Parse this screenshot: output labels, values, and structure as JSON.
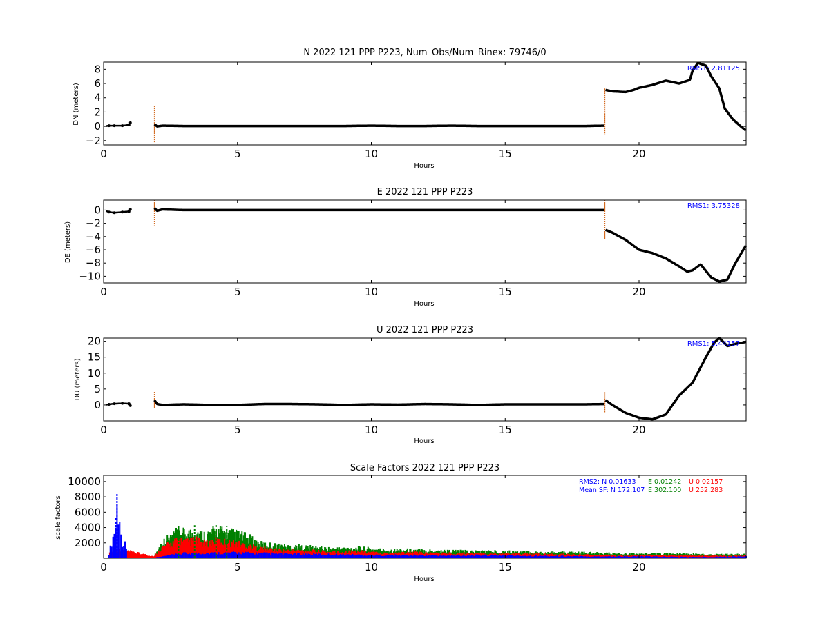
{
  "colors": {
    "trace": "#000000",
    "error_bars": "#d2691e",
    "rms_text": "#0000ff",
    "sf_n": "#0000ff",
    "sf_e": "#008000",
    "sf_u": "#ff0000"
  },
  "chart_data": [
    {
      "type": "scatter",
      "title": "N 2022 121 PPP  P223, Num_Obs/Num_Rinex: 79746/0",
      "xlabel": "Hours",
      "ylabel": "DN (meters)",
      "xlim": [
        0,
        24
      ],
      "ylim": [
        -2.6,
        9
      ],
      "xticks": [
        0,
        5,
        10,
        15,
        20
      ],
      "yticks": [
        -2,
        0,
        2,
        4,
        6,
        8
      ],
      "annotation": "RMS1:  2.81125",
      "grid": false,
      "series": [
        {
          "x": [
            0.0,
            0.2,
            0.4,
            0.7,
            0.95,
            1.0,
            1.9,
            2.0,
            2.2,
            3,
            4,
            5,
            6,
            7,
            8,
            9,
            10,
            11,
            12,
            13,
            14,
            15,
            16,
            17,
            18,
            18.7,
            18.75,
            19.0,
            19.5,
            19.8,
            20.0,
            20.5,
            21.0,
            21.5,
            21.9,
            22.0,
            22.2,
            22.5,
            22.7,
            23.0,
            23.2,
            23.5,
            23.8,
            24.0
          ],
          "y": [
            0.0,
            0.1,
            0.1,
            0.1,
            0.2,
            0.5,
            0.3,
            0.0,
            0.1,
            0.05,
            0.05,
            0.05,
            0.05,
            0.05,
            0.05,
            0.05,
            0.1,
            0.05,
            0.05,
            0.1,
            0.05,
            0.05,
            0.05,
            0.05,
            0.05,
            0.1,
            5.1,
            4.9,
            4.8,
            5.1,
            5.4,
            5.8,
            6.4,
            6.0,
            6.5,
            7.8,
            8.9,
            8.5,
            7.0,
            5.3,
            2.5,
            1.0,
            0.0,
            -0.6
          ]
        }
      ]
    },
    {
      "type": "scatter",
      "title": "E 2022 121 PPP  P223",
      "xlabel": "Hours",
      "ylabel": "DE (meters)",
      "xlim": [
        0,
        24
      ],
      "ylim": [
        -11,
        1.5
      ],
      "xticks": [
        0,
        5,
        10,
        15,
        20
      ],
      "yticks": [
        0,
        -2,
        -4,
        -6,
        -8,
        -10
      ],
      "annotation": "RMS1:  3.75328",
      "grid": false,
      "series": [
        {
          "x": [
            0.0,
            0.2,
            0.4,
            0.7,
            0.95,
            1.0,
            1.9,
            2.0,
            2.2,
            3,
            4,
            5,
            6,
            7,
            8,
            9,
            10,
            11,
            12,
            13,
            14,
            15,
            16,
            17,
            18,
            18.7,
            18.75,
            19.0,
            19.5,
            20.0,
            20.5,
            21.0,
            21.5,
            21.8,
            22.0,
            22.3,
            22.7,
            23.0,
            23.3,
            23.6,
            24.0
          ],
          "y": [
            0.0,
            -0.3,
            -0.4,
            -0.3,
            -0.2,
            0.1,
            0.3,
            -0.1,
            0.1,
            0.0,
            0.0,
            0.0,
            0.0,
            0.0,
            0.0,
            0.0,
            0.0,
            0.0,
            0.0,
            0.0,
            0.0,
            0.0,
            0.0,
            0.0,
            0.0,
            0.0,
            -3.0,
            -3.4,
            -4.5,
            -6.0,
            -6.5,
            -7.3,
            -8.5,
            -9.3,
            -9.1,
            -8.2,
            -10.2,
            -10.8,
            -10.5,
            -8.0,
            -5.3
          ]
        }
      ]
    },
    {
      "type": "scatter",
      "title": "U 2022 121 PPP  P223",
      "xlabel": "Hours",
      "ylabel": "DU (meters)",
      "xlim": [
        0,
        24
      ],
      "ylim": [
        -5,
        21
      ],
      "xticks": [
        0,
        5,
        10,
        15,
        20
      ],
      "yticks": [
        0,
        5,
        10,
        15,
        20
      ],
      "annotation": "RMS1:  5.44157",
      "grid": false,
      "series": [
        {
          "x": [
            0.0,
            0.2,
            0.4,
            0.7,
            0.95,
            1.0,
            1.9,
            2.0,
            2.2,
            3,
            4,
            5,
            6,
            7,
            8,
            9,
            10,
            11,
            12,
            13,
            14,
            15,
            16,
            17,
            18,
            18.7,
            18.75,
            19.0,
            19.5,
            20.0,
            20.5,
            21.0,
            21.5,
            22.0,
            22.5,
            22.8,
            23.0,
            23.3,
            23.6,
            24.0
          ],
          "y": [
            0.0,
            0.2,
            0.4,
            0.5,
            0.4,
            -0.2,
            1.5,
            0.3,
            0.0,
            0.2,
            0.0,
            0.0,
            0.3,
            0.3,
            0.2,
            0.0,
            0.2,
            0.1,
            0.3,
            0.2,
            0.0,
            0.2,
            0.2,
            0.2,
            0.2,
            0.3,
            1.5,
            0.0,
            -2.5,
            -4.0,
            -4.5,
            -3.0,
            3.0,
            7.0,
            15.0,
            19.5,
            21.0,
            18.5,
            19.2,
            19.8
          ]
        }
      ]
    },
    {
      "type": "scatter",
      "title": "Scale Factors 2022 121 PPP  P223",
      "xlabel": "Hours",
      "ylabel": "scale factors",
      "xlim": [
        0,
        24
      ],
      "ylim": [
        0,
        10800
      ],
      "xticks": [
        0,
        5,
        10,
        15,
        20
      ],
      "yticks": [
        2000,
        4000,
        6000,
        8000,
        10000
      ],
      "legend_placement": "top-right",
      "stats": {
        "rms2_label": "RMS2: N  0.01633",
        "rms2_e": "E  0.01242",
        "rms2_u": "U  0.02157",
        "mean_label": "Mean SF: N 172.107",
        "mean_e": "E 302.100",
        "mean_u": "U 252.283"
      },
      "series": [
        {
          "color_key": "sf_e",
          "x": [
            1.9,
            2.2,
            2.5,
            2.8,
            3.1,
            3.4,
            3.8,
            4.2,
            4.6,
            5.0,
            5.4,
            5.8,
            6.5,
            7.5,
            8.5,
            9.5,
            10.5,
            11.5,
            12.5,
            13.5,
            14.5,
            15.5,
            16.5,
            17.5,
            18.5,
            19.5,
            20.5,
            21.5,
            22.5,
            23.5,
            24.0
          ],
          "y": [
            400,
            2600,
            3400,
            4200,
            3900,
            4300,
            3700,
            4400,
            4200,
            3800,
            3300,
            2300,
            2000,
            1800,
            1500,
            1600,
            1300,
            1300,
            1200,
            1100,
            1100,
            1000,
            900,
            900,
            800,
            700,
            700,
            700,
            600,
            600,
            600
          ]
        },
        {
          "color_key": "sf_u",
          "x": [
            0.2,
            0.45,
            0.7,
            1.9,
            2.2,
            2.5,
            2.8,
            3.1,
            3.4,
            3.8,
            4.2,
            4.6,
            5.0,
            5.4,
            5.8,
            6.5,
            7.5,
            8.5,
            9.5,
            10.5,
            11.5,
            12.5,
            13.5,
            14.5,
            15.5,
            16.5,
            17.5,
            18.5,
            19.5,
            20.5,
            21.5,
            22.5,
            23.5,
            24.0
          ],
          "y": [
            700,
            1400,
            1300,
            300,
            1800,
            2300,
            3000,
            2600,
            3000,
            2400,
            2800,
            2600,
            2400,
            2000,
            1600,
            1300,
            1200,
            1000,
            1100,
            800,
            900,
            800,
            800,
            700,
            700,
            600,
            600,
            500,
            400,
            500,
            450,
            400,
            400,
            400
          ]
        },
        {
          "color_key": "sf_n",
          "x": [
            0.2,
            0.45,
            0.5,
            0.7,
            1.9,
            3.0,
            5.0,
            7.0,
            9.0,
            10.0,
            12.0,
            13.0,
            14.0,
            16.0,
            18.0,
            20.0,
            22.0,
            24.0
          ],
          "y": [
            800,
            5300,
            8500,
            2600,
            100,
            800,
            900,
            700,
            600,
            500,
            500,
            400,
            500,
            400,
            300,
            300,
            200,
            300
          ]
        }
      ]
    }
  ]
}
